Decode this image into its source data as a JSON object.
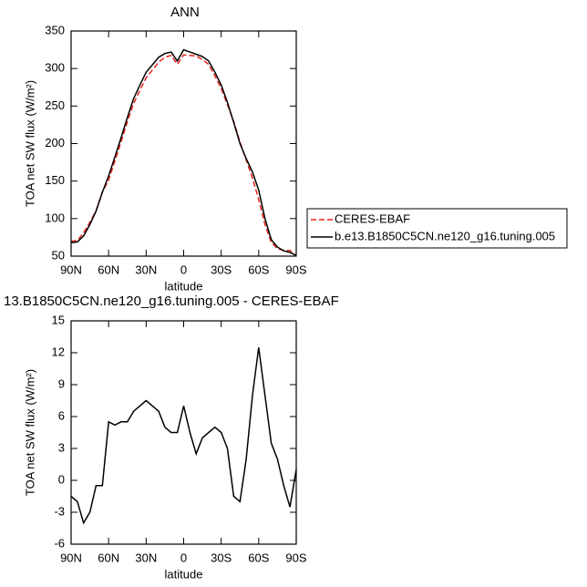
{
  "chart_data": [
    {
      "type": "line",
      "title": "ANN",
      "x_label": "latitude",
      "y_label": "TOA net SW flux (W/m²)",
      "x": [
        90,
        85,
        80,
        75,
        70,
        65,
        60,
        55,
        50,
        45,
        40,
        35,
        30,
        25,
        20,
        15,
        10,
        5,
        0,
        -5,
        -10,
        -15,
        -20,
        -25,
        -30,
        -35,
        -40,
        -45,
        -50,
        -55,
        -60,
        -65,
        -70,
        -75,
        -80,
        -85,
        -90
      ],
      "xlim": [
        90,
        -90
      ],
      "xticks": [
        {
          "value": 90,
          "label": "90N"
        },
        {
          "value": 60,
          "label": "60N"
        },
        {
          "value": 30,
          "label": "30N"
        },
        0,
        {
          "value": -30,
          "label": "30S"
        },
        {
          "value": -60,
          "label": "60S"
        },
        {
          "value": -90,
          "label": "90S"
        }
      ],
      "ylim": [
        50,
        350
      ],
      "yticks": [
        50,
        100,
        150,
        200,
        250,
        300,
        350
      ],
      "legend": "right",
      "series": [
        {
          "name": "CERES-EBAF",
          "color": "#e8221c",
          "dashed": true,
          "values": [
            69.5,
            71,
            81,
            95,
            110.5,
            135.5,
            151.5,
            176.8,
            202.5,
            229.5,
            253.5,
            271,
            287.5,
            298,
            308.5,
            315,
            317.5,
            305.5,
            318,
            317.5,
            316.5,
            312,
            305.5,
            290,
            273.5,
            252,
            229.5,
            202,
            178,
            154,
            125.5,
            92,
            68.5,
            60,
            57.5,
            57.5,
            50
          ]
        },
        {
          "name": "b.e13.B1850C5CN.ne120_g16.tuning.005",
          "color": "#000000",
          "dashed": false,
          "values": [
            68,
            69,
            77,
            92,
            110,
            135,
            157,
            182,
            208,
            235,
            260,
            278,
            295,
            305,
            315,
            320,
            322,
            310,
            325,
            322,
            319,
            316,
            310,
            295,
            278,
            255,
            228,
            200,
            180,
            162,
            138,
            100,
            72,
            62,
            57,
            55,
            51
          ]
        }
      ]
    },
    {
      "type": "line",
      "title": "13.B1850C5CN.ne120_g16.tuning.005 - CERES-EBAF",
      "x_label": "latitude",
      "y_label": "TOA net SW flux (W/m²)",
      "x": [
        90,
        85,
        80,
        75,
        70,
        65,
        60,
        55,
        50,
        45,
        40,
        35,
        30,
        25,
        20,
        15,
        10,
        5,
        0,
        -5,
        -10,
        -15,
        -20,
        -25,
        -30,
        -35,
        -40,
        -45,
        -50,
        -55,
        -60,
        -65,
        -70,
        -75,
        -80,
        -85,
        -90
      ],
      "xlim": [
        90,
        -90
      ],
      "xticks": [
        {
          "value": 90,
          "label": "90N"
        },
        {
          "value": 60,
          "label": "60N"
        },
        {
          "value": 30,
          "label": "30N"
        },
        0,
        {
          "value": -30,
          "label": "30S"
        },
        {
          "value": -60,
          "label": "60S"
        },
        {
          "value": -90,
          "label": "90S"
        }
      ],
      "ylim": [
        -6,
        15
      ],
      "yticks": [
        -6,
        -3,
        0,
        3,
        6,
        9,
        12,
        15
      ],
      "color": "#000000",
      "values": [
        -1.5,
        -2,
        -4,
        -3,
        -0.5,
        -0.5,
        5.5,
        5.2,
        5.5,
        5.5,
        6.5,
        7,
        7.5,
        7,
        6.5,
        5,
        4.5,
        4.5,
        7,
        4.5,
        2.5,
        4,
        4.5,
        5,
        4.5,
        3,
        -1.5,
        -2,
        2,
        8,
        12.5,
        8,
        3.5,
        2,
        -0.5,
        -2.5,
        1
      ]
    }
  ]
}
